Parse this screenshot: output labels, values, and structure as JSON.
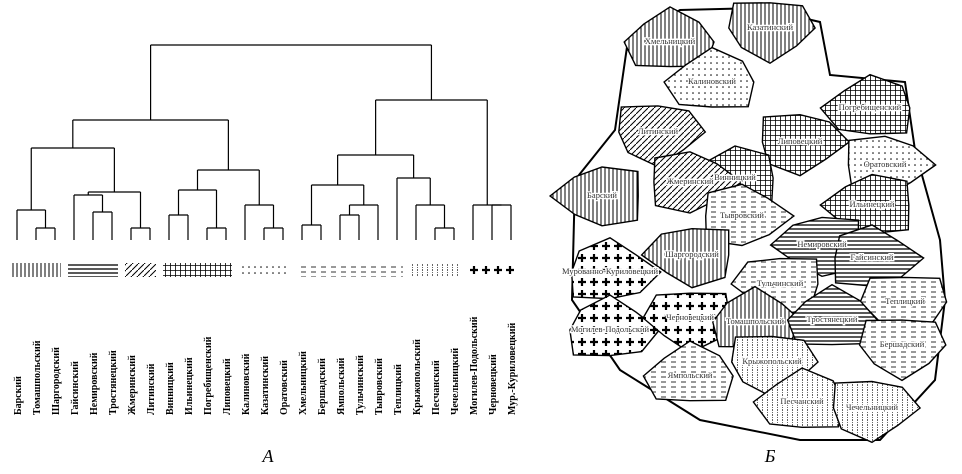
{
  "dendrogram": {
    "leaves": [
      "Барский",
      "Томашпольский",
      "Шаргородский",
      "Гайсинский",
      "Немировский",
      "Тростянецкий",
      "Жмеринский",
      "Литинский",
      "Винницкий",
      "Ильинецкий",
      "Погребищенский",
      "Липовецкий",
      "Калиновский",
      "Казатинский",
      "Оратовский",
      "Хмельницкий",
      "Бершадский",
      "Ямпольский",
      "Тульчинский",
      "Тывровский",
      "Теплицкий",
      "Крыжопольский",
      "Песчанский",
      "Чечельницкий",
      "Могилев-Подольский",
      "Черновецкий",
      "Мур.-Куриловецкий"
    ]
  },
  "map": {
    "regions": [
      "Хмельницкий",
      "Казатинский",
      "Калиновский",
      "Литинский",
      "Погребищенский",
      "Липовецкий",
      "Винницкий",
      "Оратовский",
      "Ильинецкий",
      "Жмеринский",
      "Барский",
      "Тывровский",
      "Немировский",
      "Гайсинский",
      "Шаргородский",
      "Мурованно-Куриловецкий",
      "Тульчинский",
      "Могилев-Подольский",
      "Черновецкий",
      "Томашпольский",
      "Теплицкий",
      "Тростянецкий",
      "Бершадский",
      "Ямпольский",
      "Крыжопольский",
      "Песчанский",
      "Чечельницкий"
    ]
  },
  "captions": [
    "А",
    "Б"
  ]
}
